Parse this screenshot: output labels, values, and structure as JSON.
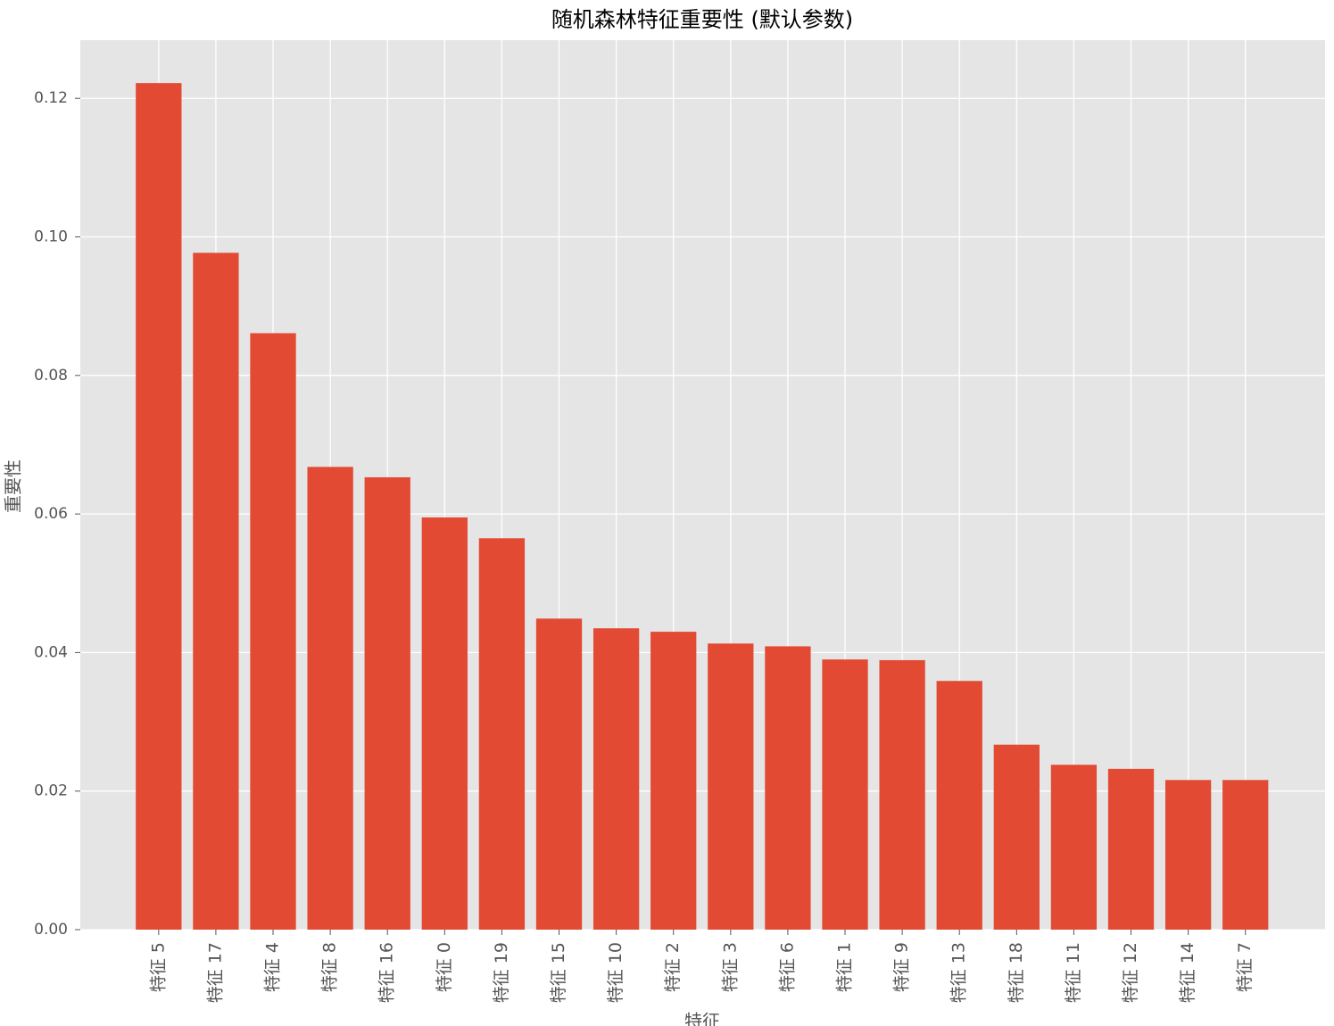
{
  "chart_data": {
    "type": "bar",
    "title": "随机森林特征重要性 (默认参数)",
    "xlabel": "特征",
    "ylabel": "重要性",
    "categories": [
      "特征 5",
      "特征 17",
      "特征 4",
      "特征 8",
      "特征 16",
      "特征 0",
      "特征 19",
      "特征 15",
      "特征 10",
      "特征 2",
      "特征 3",
      "特征 6",
      "特征 1",
      "特征 9",
      "特征 13",
      "特征 18",
      "特征 11",
      "特征 12",
      "特征 14",
      "特征 7"
    ],
    "values": [
      0.1222,
      0.0977,
      0.0861,
      0.0668,
      0.0653,
      0.0595,
      0.0565,
      0.0449,
      0.0435,
      0.043,
      0.0413,
      0.0409,
      0.039,
      0.0389,
      0.0359,
      0.0267,
      0.0238,
      0.0232,
      0.0216,
      0.0216
    ],
    "color": "#e24a33",
    "ylim": [
      0,
      0.1284
    ],
    "yticks": [
      {
        "value": 0,
        "label": "0.00"
      },
      {
        "value": 0.02,
        "label": "0.02"
      },
      {
        "value": 0.04,
        "label": "0.04"
      },
      {
        "value": 0.06,
        "label": "0.06"
      },
      {
        "value": 0.08,
        "label": "0.08"
      },
      {
        "value": 0.1,
        "label": "0.10"
      },
      {
        "value": 0.12,
        "label": "0.12"
      }
    ],
    "grid": true
  }
}
